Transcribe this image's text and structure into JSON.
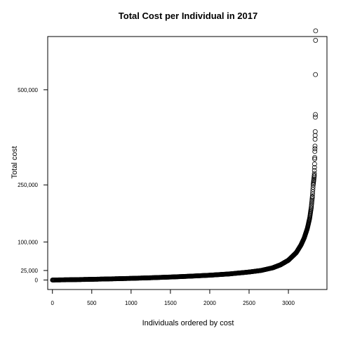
{
  "chart_data": {
    "type": "scatter",
    "title": "Total Cost per Individual in 2017",
    "xlabel": "Individuals ordered by cost",
    "ylabel": "Total cost",
    "xlim": [
      -60,
      3490
    ],
    "ylim": [
      -25000,
      640000
    ],
    "x_ticks": [
      0,
      500,
      1000,
      1500,
      2000,
      2500,
      3000
    ],
    "x_tick_labels": [
      "0",
      "500",
      "1000",
      "1500",
      "2000",
      "2500",
      "3000"
    ],
    "y_ticks": [
      0,
      25000,
      100000,
      250000,
      500000
    ],
    "y_tick_labels": [
      "0",
      "25,000",
      "100,000",
      "250,000",
      "500,000"
    ],
    "grid": false,
    "marker": "open-circle",
    "sorted_curve": [
      [
        0,
        0
      ],
      [
        250,
        800
      ],
      [
        500,
        1800
      ],
      [
        750,
        3000
      ],
      [
        1000,
        4300
      ],
      [
        1250,
        5900
      ],
      [
        1500,
        7800
      ],
      [
        1750,
        10000
      ],
      [
        2000,
        12600
      ],
      [
        2250,
        16000
      ],
      [
        2500,
        21000
      ],
      [
        2650,
        25000
      ],
      [
        2800,
        32000
      ],
      [
        2900,
        40000
      ],
      [
        3000,
        52000
      ],
      [
        3100,
        72000
      ],
      [
        3160,
        92000
      ],
      [
        3200,
        110000
      ],
      [
        3240,
        135000
      ],
      [
        3270,
        162000
      ],
      [
        3290,
        190000
      ],
      [
        3305,
        220000
      ],
      [
        3315,
        250000
      ],
      [
        3322,
        262000
      ],
      [
        3329,
        275000
      ]
    ],
    "points": [
      [
        3330,
        280000
      ],
      [
        3331,
        288000
      ],
      [
        3332,
        296000
      ],
      [
        3333,
        305000
      ],
      [
        3334,
        318000
      ],
      [
        3335,
        322000
      ],
      [
        3336,
        338000
      ],
      [
        3337,
        345000
      ],
      [
        3338,
        352000
      ],
      [
        3339,
        370000
      ],
      [
        3340,
        380000
      ],
      [
        3341,
        390000
      ],
      [
        3342,
        428000
      ],
      [
        3343,
        435000
      ],
      [
        3344,
        540000
      ],
      [
        3345,
        630000
      ],
      [
        3346,
        655000
      ]
    ]
  }
}
